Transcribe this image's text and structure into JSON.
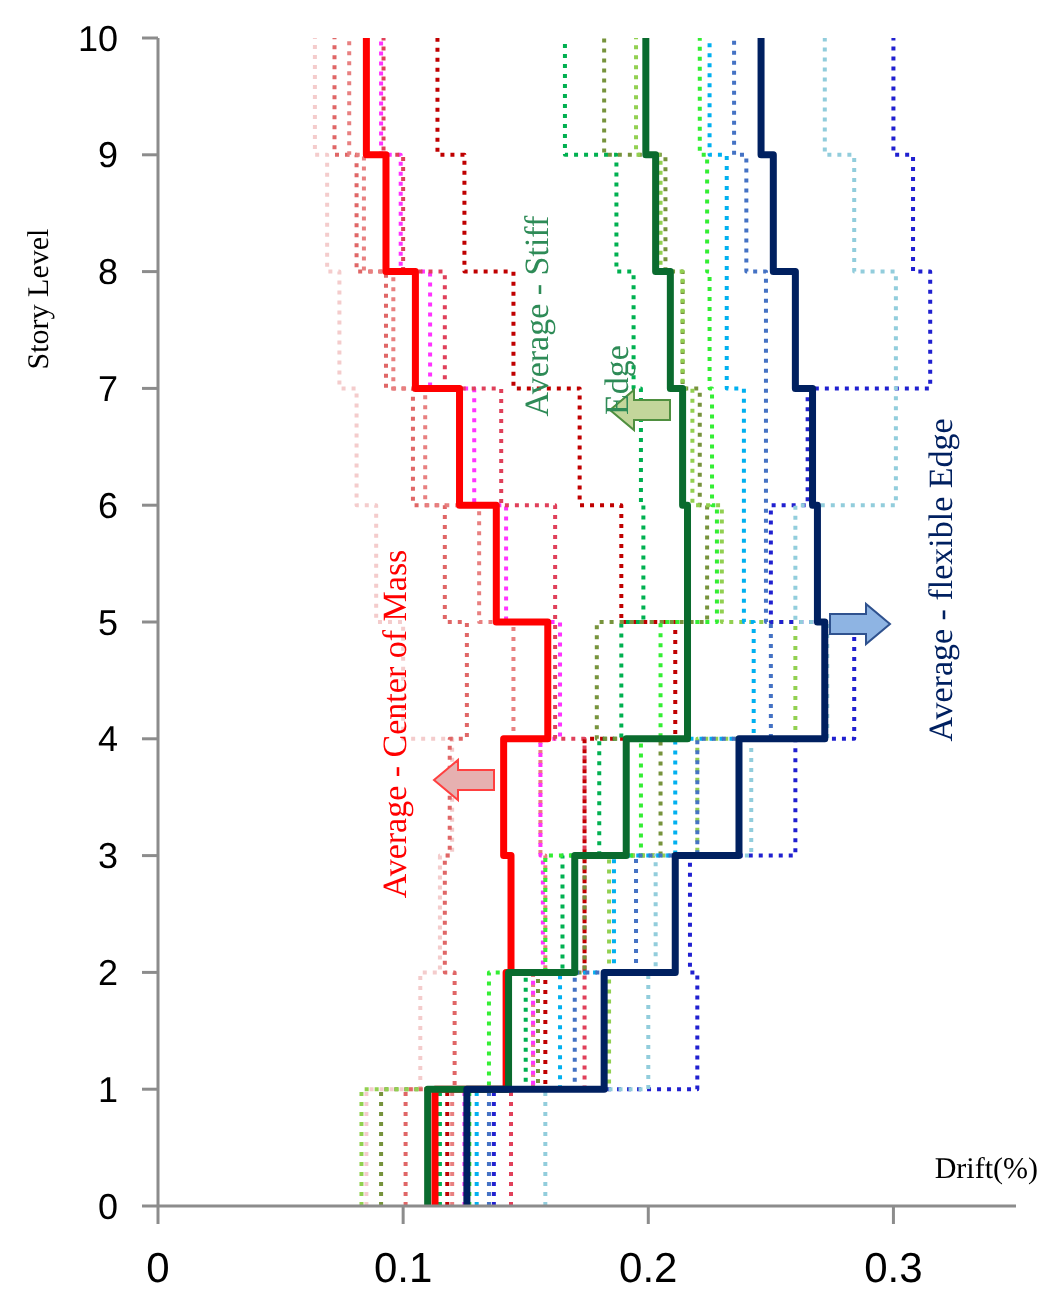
{
  "chart_data": {
    "type": "step",
    "orientation": "horizontal",
    "xlabel": "Drift(%)",
    "ylabel": "Story Level",
    "x": [
      0,
      1,
      2,
      3,
      4,
      5,
      6,
      7,
      8,
      9,
      10
    ],
    "xlim": [
      0,
      0.35
    ],
    "xticks": [
      0,
      0.1,
      0.2,
      0.3
    ],
    "ylim": [
      0,
      10
    ],
    "yticks": [
      0,
      1,
      2,
      3,
      4,
      5,
      6,
      7,
      8,
      9,
      10
    ],
    "series": [
      {
        "color": "#f4cccc",
        "line_style": "dotted",
        "values": [
          0.085,
          0.107,
          0.115,
          0.12,
          0.1,
          0.089,
          0.081,
          0.074,
          0.069,
          0.064,
          0.064
        ]
      },
      {
        "color": "#e06666",
        "line_style": "dotted",
        "values": [
          0.101,
          0.121,
          0.117,
          0.119,
          0.126,
          0.117,
          0.104,
          0.093,
          0.081,
          0.072,
          0.072
        ]
      },
      {
        "color": "#e88080",
        "line_style": "dotted",
        "values": [
          0.12,
          0.153,
          0.158,
          0.156,
          0.145,
          0.131,
          0.109,
          0.096,
          0.084,
          0.078,
          0.078
        ]
      },
      {
        "color": "#ff33ff",
        "line_style": "dotted",
        "values": [
          0.125,
          0.153,
          0.157,
          0.156,
          0.164,
          0.142,
          0.129,
          0.111,
          0.099,
          0.091,
          0.091
        ]
      },
      {
        "color": "#e0405a",
        "line_style": "dotted",
        "values": [
          0.144,
          0.174,
          0.174,
          0.174,
          0.162,
          0.162,
          0.14,
          0.117,
          0.1,
          0.092,
          0.092
        ]
      },
      {
        "color": "#c00000",
        "line_style": "dotted",
        "values": [
          0.118,
          0.158,
          0.174,
          0.174,
          0.211,
          0.189,
          0.172,
          0.145,
          0.125,
          0.114,
          0.114
        ]
      },
      {
        "color": "#00b050",
        "line_style": "dotted",
        "values": [
          0.115,
          0.15,
          0.165,
          0.18,
          0.189,
          0.198,
          0.197,
          0.194,
          0.187,
          0.166,
          0.166
        ]
      },
      {
        "color": "#77933c",
        "line_style": "dotted",
        "values": [
          0.091,
          0.155,
          0.174,
          0.205,
          0.179,
          0.224,
          0.221,
          0.214,
          0.207,
          0.182,
          0.182
        ]
      },
      {
        "color": "#92d050",
        "line_style": "dotted",
        "values": [
          0.083,
          0.184,
          0.184,
          0.22,
          0.26,
          0.23,
          0.218,
          0.214,
          0.205,
          0.195,
          0.195
        ]
      },
      {
        "color": "#33ee33",
        "line_style": "dotted",
        "values": [
          0.127,
          0.135,
          0.158,
          0.197,
          0.205,
          0.228,
          0.226,
          0.225,
          0.224,
          0.221,
          0.221
        ]
      },
      {
        "color": "#2020d0",
        "line_style": "dotted",
        "values": [
          0.137,
          0.22,
          0.217,
          0.26,
          0.284,
          0.25,
          0.265,
          0.315,
          0.308,
          0.3,
          0.3
        ]
      },
      {
        "color": "#92cddc",
        "line_style": "dotted",
        "values": [
          0.158,
          0.2,
          0.203,
          0.242,
          0.273,
          0.26,
          0.301,
          0.301,
          0.284,
          0.272,
          0.272
        ]
      },
      {
        "color": "#00b0f0",
        "line_style": "dotted",
        "values": [
          0.13,
          0.164,
          0.186,
          0.211,
          0.243,
          0.239,
          0.239,
          0.232,
          0.232,
          0.225,
          0.225
        ]
      },
      {
        "color": "#4472c4",
        "line_style": "dotted",
        "values": [
          0.135,
          0.17,
          0.195,
          0.22,
          0.25,
          0.248,
          0.248,
          0.248,
          0.24,
          0.235,
          0.235
        ]
      },
      {
        "name": "Average - Center of Mass",
        "color": "#ff0000",
        "line_style": "solid",
        "values": [
          0.113,
          0.142,
          0.144,
          0.141,
          0.159,
          0.138,
          0.123,
          0.105,
          0.093,
          0.085,
          0.085
        ]
      },
      {
        "name": "Average - Stiff Edge",
        "color": "#0a6b2e",
        "line_style": "solid",
        "values": [
          0.11,
          0.143,
          0.17,
          0.191,
          0.216,
          0.216,
          0.214,
          0.209,
          0.203,
          0.199,
          0.199
        ]
      },
      {
        "name": "Average - flexible Edge",
        "color": "#002060",
        "line_style": "solid",
        "values": [
          0.126,
          0.182,
          0.211,
          0.237,
          0.272,
          0.269,
          0.267,
          0.26,
          0.251,
          0.246,
          0.246
        ]
      }
    ]
  }
}
